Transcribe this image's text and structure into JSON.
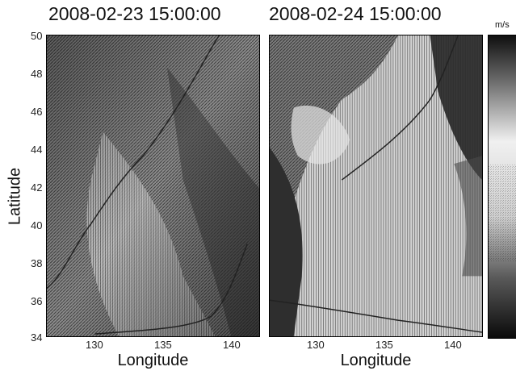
{
  "chart_data": [
    {
      "type": "heatmap",
      "title": "2008-02-23 15:00:00",
      "xlabel": "Longitude",
      "ylabel": "Latitude",
      "xlim": [
        126.5,
        142
      ],
      "ylim": [
        34,
        50
      ],
      "xticks": [
        130,
        135,
        140
      ],
      "yticks": [
        34,
        36,
        38,
        40,
        42,
        44,
        46,
        48,
        50
      ],
      "colorbar_unit": "m/s",
      "colormap": "grayscale"
    },
    {
      "type": "heatmap",
      "title": "2008-02-24 15:00:00",
      "xlabel": "Longitude",
      "ylabel": "",
      "xlim": [
        126.5,
        142
      ],
      "ylim": [
        34,
        50
      ],
      "xticks": [
        130,
        135,
        140
      ],
      "yticks": [],
      "colorbar_unit": "m/s",
      "colormap": "grayscale"
    }
  ],
  "colors": {
    "background": "#ffffff",
    "dark": "#1a1a1a",
    "mid": "#7a7a7a",
    "light": "#d6d6d6"
  }
}
